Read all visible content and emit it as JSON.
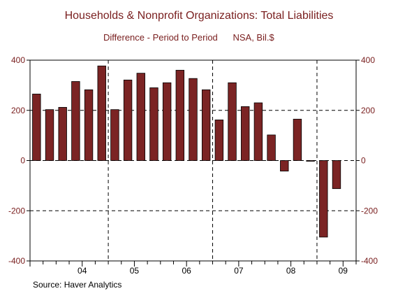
{
  "chart_data": {
    "type": "bar",
    "title": "Households & Nonprofit Organizations: Total Liabilities",
    "subtitle": "Difference - Period to Period      NSA, Bil.$",
    "source": "Source:  Haver Analytics",
    "categories": [
      "2003Q1",
      "2003Q2",
      "2003Q3",
      "2003Q4",
      "2004Q1",
      "2004Q2",
      "2004Q3",
      "2004Q4",
      "2005Q1",
      "2005Q2",
      "2005Q3",
      "2005Q4",
      "2006Q1",
      "2006Q2",
      "2006Q3",
      "2006Q4",
      "2007Q1",
      "2007Q2",
      "2007Q3",
      "2007Q4",
      "2008Q1",
      "2008Q2",
      "2008Q3",
      "2008Q4",
      "2009Q1"
    ],
    "values": [
      265,
      203,
      212,
      315,
      282,
      377,
      203,
      321,
      348,
      290,
      310,
      360,
      327,
      282,
      162,
      310,
      215,
      230,
      102,
      -42,
      165,
      -2,
      -305,
      -112,
      0
    ],
    "ylim": [
      -400,
      400
    ],
    "yticks": [
      -400,
      -200,
      0,
      200,
      400
    ],
    "year_labels": [
      "04",
      "05",
      "06",
      "07",
      "08",
      "09"
    ],
    "year_label_positions": [
      4,
      8,
      12,
      16,
      20,
      24
    ],
    "vertical_dividers": [
      6,
      14,
      22
    ],
    "grid": "dashed horizontal at ±200 and 0",
    "bar_color": "#7b2424",
    "axis_color": "#7a2020"
  }
}
